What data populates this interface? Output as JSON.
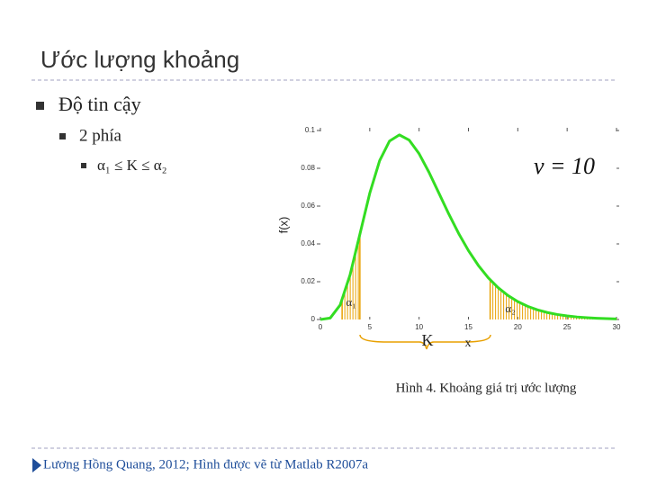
{
  "slide": {
    "title": "Ước lượng khoảng",
    "bullets": [
      "Độ tin cậy",
      "2 phía",
      "α₁ ≤ K ≤ α₂"
    ],
    "caption": "Hình 4. Khoảng giá trị ước lượng",
    "footer": "Lương Hồng Quang, 2012; Hình được vẽ từ Matlab R2007a"
  },
  "chart_data": {
    "type": "line",
    "ylabel": "f(x)",
    "x": [
      0,
      1,
      2,
      3,
      4,
      5,
      6,
      7,
      8,
      9,
      10,
      11,
      12,
      13,
      14,
      15,
      16,
      17,
      18,
      19,
      20,
      21,
      22,
      23,
      24,
      25,
      26,
      27,
      28,
      29,
      30
    ],
    "series": [
      {
        "color": "#33dd22",
        "values": [
          0,
          0.00079,
          0.00766,
          0.02353,
          0.04511,
          0.0668,
          0.08402,
          0.09441,
          0.09768,
          0.0949,
          0.08773,
          0.07791,
          0.06693,
          0.05591,
          0.04561,
          0.03646,
          0.02863,
          0.02213,
          0.01687,
          0.0127,
          0.00946,
          0.00697,
          0.00509,
          0.00369,
          0.00265,
          0.0019,
          0.00134,
          0.00095,
          0.00067,
          0.00046,
          0.00032
        ]
      }
    ],
    "shaded": [
      {
        "from": 2.2,
        "to": 4,
        "color": "#e8a000"
      },
      {
        "from": 17.2,
        "to": 30,
        "color": "#e8a000"
      }
    ],
    "xlim": [
      0,
      30
    ],
    "ylim": [
      0,
      0.1
    ],
    "xticks": [
      0,
      5,
      10,
      15,
      20,
      25,
      30
    ],
    "yticks": [
      0,
      0.02,
      0.04,
      0.06,
      0.08,
      0.1
    ],
    "annotations": [
      "ν = 10",
      "α₁",
      "α₂",
      "K",
      "x"
    ]
  }
}
